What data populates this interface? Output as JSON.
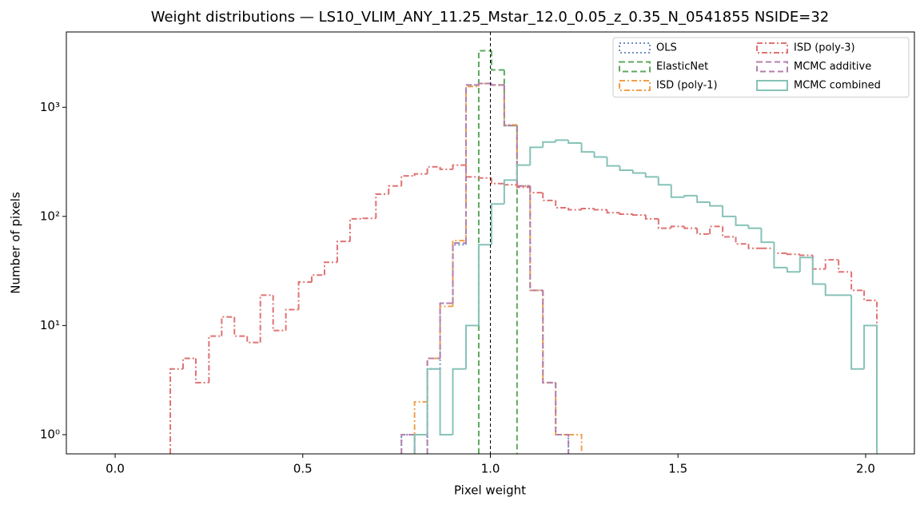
{
  "chart_data": {
    "type": "histogram",
    "title": "Weight distributions — LS10_VLIM_ANY_11.25_Mstar_12.0_0.05_z_0.35_N_0541855  NSIDE=32",
    "xlabel": "Pixel weight",
    "ylabel": "Number of pixels",
    "log_y": true,
    "legend": "upper right",
    "legend_columns": 2,
    "vline": 1,
    "xlim": [
      -0.13,
      2.13
    ],
    "ylim": [
      0.667,
      4900
    ],
    "xticks": [
      {
        "value": 0,
        "label": "0.0"
      },
      0.5,
      {
        "value": 1,
        "label": "1.0"
      },
      1.5,
      {
        "value": 2,
        "label": "2.0"
      }
    ],
    "yticks": [
      {
        "value": 1,
        "label": "10⁰"
      },
      {
        "value": 10,
        "label": "10¹"
      },
      {
        "value": 100,
        "label": "10²"
      },
      {
        "value": 1000,
        "label": "10³"
      }
    ],
    "bins": [
      0.147,
      0.181,
      0.215,
      0.25,
      0.284,
      0.318,
      0.352,
      0.387,
      0.421,
      0.455,
      0.489,
      0.524,
      0.558,
      0.592,
      0.626,
      0.661,
      0.695,
      0.729,
      0.763,
      0.798,
      0.832,
      0.866,
      0.9,
      0.935,
      0.969,
      1.003,
      1.037,
      1.071,
      1.106,
      1.14,
      1.174,
      1.208,
      1.243,
      1.277,
      1.311,
      1.345,
      1.38,
      1.414,
      1.448,
      1.482,
      1.517,
      1.551,
      1.585,
      1.619,
      1.654,
      1.688,
      1.722,
      1.756,
      1.791,
      1.825,
      1.859,
      1.893,
      1.928,
      1.962,
      1.996,
      2.03
    ],
    "series": [
      {
        "name": "OLS",
        "color": "#6f8fc0",
        "linestyle": "dotted",
        "values": [
          null,
          null,
          null,
          null,
          null,
          null,
          null,
          null,
          null,
          null,
          null,
          null,
          null,
          null,
          null,
          null,
          null,
          null,
          1,
          null,
          4,
          16,
          55,
          1600,
          1650,
          1600,
          680,
          190,
          21,
          3,
          1,
          null,
          null,
          null,
          null,
          null,
          null,
          null,
          null,
          null,
          null,
          null,
          null,
          null,
          null,
          null,
          null,
          null,
          null,
          null,
          null,
          null,
          null,
          null,
          null
        ]
      },
      {
        "name": "ElasticNet",
        "color": "#5fa85f",
        "linestyle": "dashed",
        "values": [
          null,
          null,
          null,
          null,
          null,
          null,
          null,
          null,
          null,
          null,
          null,
          null,
          null,
          null,
          null,
          null,
          null,
          null,
          null,
          null,
          null,
          null,
          null,
          null,
          3300,
          2200,
          680,
          null,
          null,
          null,
          null,
          null,
          null,
          null,
          null,
          null,
          null,
          null,
          null,
          null,
          null,
          null,
          null,
          null,
          null,
          null,
          null,
          null,
          null,
          null,
          null,
          null,
          null,
          null,
          null
        ]
      },
      {
        "name": "ISD (poly-1)",
        "color": "#f0a04b",
        "linestyle": "dashdot",
        "values": [
          null,
          null,
          null,
          null,
          null,
          null,
          null,
          null,
          null,
          null,
          null,
          null,
          null,
          null,
          null,
          null,
          null,
          null,
          null,
          2,
          5,
          15,
          60,
          1550,
          1650,
          1600,
          690,
          190,
          21,
          3,
          1,
          1,
          null,
          null,
          null,
          null,
          null,
          null,
          null,
          null,
          null,
          null,
          null,
          null,
          null,
          null,
          null,
          null,
          null,
          null,
          null,
          null,
          null,
          null,
          null
        ]
      },
      {
        "name": "ISD (poly-3)",
        "color": "#e07272",
        "linestyle": "dashdot",
        "values": [
          4,
          5,
          3,
          8,
          12,
          8,
          7,
          19,
          9,
          14,
          25,
          29,
          38,
          59,
          95,
          96,
          160,
          190,
          235,
          245,
          285,
          270,
          295,
          230,
          225,
          200,
          195,
          185,
          165,
          140,
          120,
          115,
          118,
          115,
          108,
          105,
          103,
          95,
          78,
          81,
          78,
          69,
          81,
          65,
          56,
          51,
          51,
          46,
          45,
          44,
          33,
          40,
          31,
          21,
          17
        ]
      },
      {
        "name": "MCMC additive",
        "color": "#b47fad",
        "linestyle": "dashed",
        "values": [
          null,
          null,
          null,
          null,
          null,
          null,
          null,
          null,
          null,
          null,
          null,
          null,
          null,
          null,
          null,
          null,
          null,
          null,
          1,
          null,
          5,
          16,
          57,
          1600,
          1650,
          1600,
          680,
          190,
          21,
          3,
          1,
          null,
          null,
          null,
          null,
          null,
          null,
          null,
          null,
          null,
          null,
          null,
          null,
          null,
          null,
          null,
          null,
          null,
          null,
          null,
          null,
          null,
          null,
          null,
          null
        ]
      },
      {
        "name": "MCMC combined",
        "color": "#86c2b8",
        "linestyle": "solid",
        "values": [
          null,
          null,
          null,
          null,
          null,
          null,
          null,
          null,
          null,
          null,
          null,
          null,
          null,
          null,
          null,
          null,
          null,
          null,
          null,
          1,
          4,
          1,
          4,
          10,
          55,
          130,
          215,
          295,
          430,
          480,
          500,
          470,
          390,
          350,
          290,
          265,
          250,
          230,
          195,
          150,
          155,
          135,
          125,
          100,
          83,
          78,
          58,
          34,
          31,
          42,
          24,
          19,
          19,
          4,
          10
        ]
      }
    ]
  }
}
